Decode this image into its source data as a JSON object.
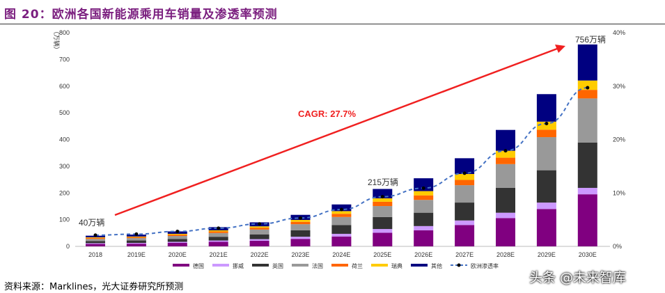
{
  "title": "图 20：欧洲各国新能源乘用车销量及渗透率预测",
  "source": "资料来源：Marklines，光大证券研究所预测",
  "watermark": "头条 @未来智库",
  "chart_data": {
    "type": "bar",
    "stacked": true,
    "ylabel": "（万辆）",
    "ylim": [
      0,
      800
    ],
    "yticks": [
      0,
      100,
      200,
      300,
      400,
      500,
      600,
      700,
      800
    ],
    "y2lim": [
      0,
      40
    ],
    "y2ticks": [
      "0%",
      "10%",
      "20%",
      "30%",
      "40%"
    ],
    "categories": [
      "2018",
      "2019E",
      "2020E",
      "2021E",
      "2022E",
      "2023E",
      "2024E",
      "2025E",
      "2026E",
      "2027E",
      "2028E",
      "2029E",
      "2030E"
    ],
    "series": [
      {
        "name": "德国",
        "color": "#800080",
        "values": [
          9,
          10,
          13,
          17,
          21,
          28,
          37,
          51,
          60,
          80,
          106,
          140,
          195
        ]
      },
      {
        "name": "挪威",
        "color": "#CC99FF",
        "values": [
          3,
          3,
          4,
          5,
          6,
          8,
          10,
          14,
          16,
          17,
          20,
          24,
          24
        ]
      },
      {
        "name": "英国",
        "color": "#333333",
        "values": [
          8,
          9,
          11,
          14,
          18,
          24,
          33,
          45,
          50,
          67,
          93,
          121,
          170
        ]
      },
      {
        "name": "法国",
        "color": "#999999",
        "values": [
          8,
          9,
          11,
          14,
          18,
          23,
          30,
          41,
          48,
          65,
          89,
          124,
          165
        ]
      },
      {
        "name": "荷兰",
        "color": "#FF6600",
        "values": [
          4,
          4,
          5,
          6,
          7,
          9,
          12,
          16,
          17,
          20,
          24,
          28,
          32
        ]
      },
      {
        "name": "瑞典",
        "color": "#FFCC00",
        "values": [
          2,
          2,
          3,
          4,
          5,
          7,
          10,
          13,
          16,
          22,
          26,
          30,
          35
        ]
      },
      {
        "name": "其他",
        "color": "#000080",
        "values": [
          6,
          7,
          9,
          12,
          15,
          19,
          25,
          35,
          48,
          59,
          78,
          103,
          135
        ]
      }
    ],
    "line_series": {
      "name": "欧洲渗透率",
      "axis": "right",
      "unit": "%",
      "color": "#4472C4",
      "values": [
        2.1,
        2.3,
        2.8,
        3.4,
        4.2,
        5.3,
        6.9,
        9.3,
        10.9,
        13.7,
        17.9,
        23.0,
        29.7
      ]
    },
    "annotations": {
      "start_label": "40万辆",
      "mid_label": "215万辆",
      "end_label": "756万辆",
      "cagr_label": "CAGR: 27.7%"
    },
    "legend": "bottom",
    "grid": false
  }
}
